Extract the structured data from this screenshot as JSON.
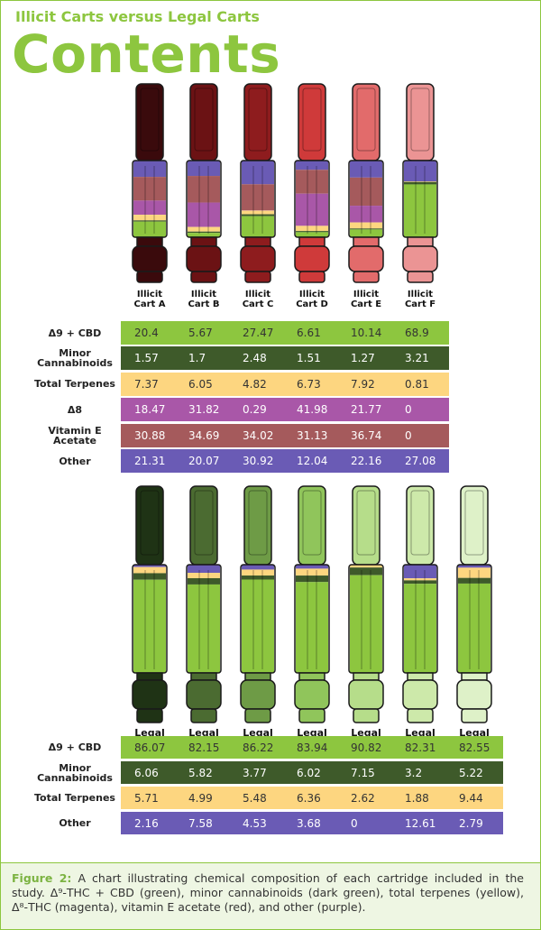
{
  "header": {
    "kicker": "Illicit Carts versus Legal Carts",
    "title": "Contents"
  },
  "illicit": {
    "columns": [
      "Illicit Cart A",
      "Illicit Cart B",
      "Illicit Cart C",
      "Illicit Cart D",
      "Illicit Cart E",
      "Illicit Cart F"
    ],
    "cart_colors": [
      "#3a0a0c",
      "#6b1214",
      "#8e1c1e",
      "#cf3a3a",
      "#e26b6b",
      "#eb9494"
    ],
    "rows": [
      {
        "label": "Δ9 + CBD",
        "color": "#8dc63f",
        "values": [
          20.4,
          5.67,
          27.47,
          6.61,
          10.14,
          68.9
        ]
      },
      {
        "label": "Minor Cannabinoids",
        "color": "#3e5a2a",
        "values": [
          1.57,
          1.7,
          2.48,
          1.51,
          1.27,
          3.21
        ]
      },
      {
        "label": "Total Terpenes",
        "color": "#fdd680",
        "values": [
          7.37,
          6.05,
          4.82,
          6.73,
          7.92,
          0.81
        ]
      },
      {
        "label": "Δ8",
        "color": "#a957a8",
        "values": [
          18.47,
          31.82,
          0.29,
          41.98,
          21.77,
          0
        ]
      },
      {
        "label": "Vitamin E Acetate",
        "color": "#a55a5c",
        "values": [
          30.88,
          34.69,
          34.02,
          31.13,
          36.74,
          0
        ]
      },
      {
        "label": "Other",
        "color": "#6a5bb5",
        "values": [
          21.31,
          20.07,
          30.92,
          12.04,
          22.16,
          27.08
        ]
      }
    ]
  },
  "legal": {
    "columns": [
      "Legal Cart A",
      "Legal Cart B",
      "Legal Cart C",
      "Legal Cart D",
      "Legal Cart E",
      "Legal Cart F",
      "Legal Cart G"
    ],
    "cart_colors": [
      "#1f3315",
      "#4b6b31",
      "#6e9b46",
      "#90c55b",
      "#b6dd8a",
      "#cde9aa",
      "#def1c8"
    ],
    "rows": [
      {
        "label": "Δ9 + CBD",
        "color": "#8dc63f",
        "values": [
          86.07,
          82.15,
          86.22,
          83.94,
          90.82,
          82.31,
          82.55
        ]
      },
      {
        "label": "Minor Cannabinoids",
        "color": "#3e5a2a",
        "values": [
          6.06,
          5.82,
          3.77,
          6.02,
          7.15,
          3.2,
          5.22
        ]
      },
      {
        "label": "Total Terpenes",
        "color": "#fdd680",
        "values": [
          5.71,
          4.99,
          5.48,
          6.36,
          2.62,
          1.88,
          9.44
        ]
      },
      {
        "label": "Other",
        "color": "#6a5bb5",
        "values": [
          2.16,
          7.58,
          4.53,
          3.68,
          0,
          12.61,
          2.79
        ]
      }
    ]
  },
  "caption": {
    "label": "Figure 2:",
    "text": "A chart illustrating chemical composition of each cartridge included in the study. Δ⁹-THC + CBD (green), minor cannabinoids (dark green), total terpenes (yellow), Δ⁸-THC (magenta), vitamin E acetate (red), and other (purple)."
  }
}
